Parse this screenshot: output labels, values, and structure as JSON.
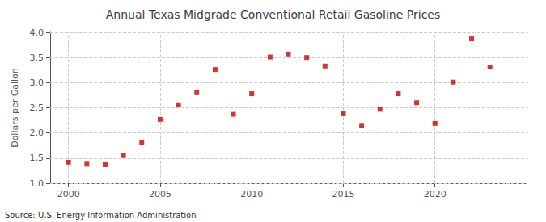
{
  "chart_data": {
    "type": "scatter",
    "title": "Annual Texas Midgrade Conventional Retail Gasoline Prices",
    "y_label": "Dollars per Gallon",
    "annotations": [
      "Source: U.S. Energy Information Administration"
    ],
    "x": [
      2000,
      2001,
      2002,
      2003,
      2004,
      2005,
      2006,
      2007,
      2008,
      2009,
      2010,
      2011,
      2012,
      2013,
      2014,
      2015,
      2016,
      2017,
      2018,
      2019,
      2020,
      2021,
      2022,
      2023
    ],
    "values": [
      1.42,
      1.38,
      1.37,
      1.55,
      1.81,
      2.27,
      2.56,
      2.8,
      3.26,
      2.37,
      2.78,
      3.51,
      3.57,
      3.5,
      3.33,
      2.38,
      2.15,
      2.47,
      2.78,
      2.6,
      2.19,
      3.01,
      3.87,
      3.31
    ],
    "color": "#cc0000",
    "marker": "square",
    "xlim": [
      1999,
      2025
    ],
    "xticks": [
      2000,
      2005,
      2010,
      2015,
      2020
    ],
    "ylim": [
      1.0,
      4.0
    ],
    "yticks": [
      {
        "value": 1.0,
        "label": "1.0"
      },
      1.5,
      {
        "value": 2.0,
        "label": "2.0"
      },
      2.5,
      {
        "value": 3.0,
        "label": "3.0"
      },
      3.5,
      {
        "value": 4.0,
        "label": "4.0"
      }
    ],
    "grid": true
  }
}
